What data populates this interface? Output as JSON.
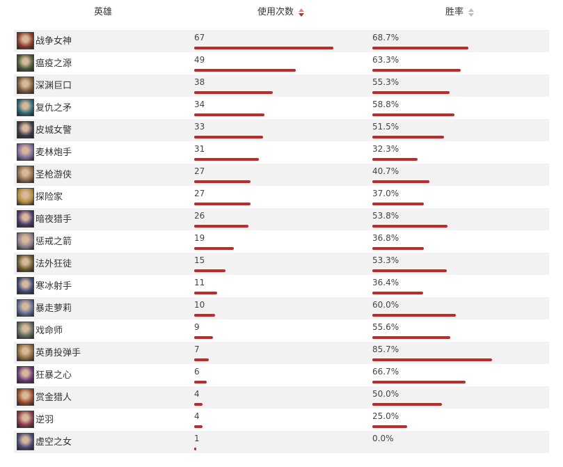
{
  "header": {
    "hero_label": "英雄",
    "uses_label": "使用次数",
    "winrate_label": "胜率"
  },
  "accent_color": "#c62828",
  "heroes": [
    {
      "name": "战争女神",
      "uses": "67",
      "winrate": "68.7%",
      "uses_num": 67,
      "win_num": 68.7,
      "avatar_color": "#8a3a2a"
    },
    {
      "name": "瘟疫之源",
      "uses": "49",
      "winrate": "63.3%",
      "uses_num": 49,
      "win_num": 63.3,
      "avatar_color": "#4a5a3a"
    },
    {
      "name": "深渊巨口",
      "uses": "38",
      "winrate": "55.3%",
      "uses_num": 38,
      "win_num": 55.3,
      "avatar_color": "#7a5a3a"
    },
    {
      "name": "复仇之矛",
      "uses": "34",
      "winrate": "58.8%",
      "uses_num": 34,
      "win_num": 58.8,
      "avatar_color": "#2a6a7a"
    },
    {
      "name": "皮城女警",
      "uses": "33",
      "winrate": "51.5%",
      "uses_num": 33,
      "win_num": 51.5,
      "avatar_color": "#3a3a4a"
    },
    {
      "name": "麦林炮手",
      "uses": "31",
      "winrate": "32.3%",
      "uses_num": 31,
      "win_num": 32.3,
      "avatar_color": "#7a6a9a"
    },
    {
      "name": "圣枪游侠",
      "uses": "27",
      "winrate": "40.7%",
      "uses_num": 27,
      "win_num": 40.7,
      "avatar_color": "#8a6a4a"
    },
    {
      "name": "探险家",
      "uses": "27",
      "winrate": "37.0%",
      "uses_num": 27,
      "win_num": 37.0,
      "avatar_color": "#b08a3a"
    },
    {
      "name": "暗夜猎手",
      "uses": "26",
      "winrate": "53.8%",
      "uses_num": 26,
      "win_num": 53.8,
      "avatar_color": "#4a3a6a"
    },
    {
      "name": "惩戒之箭",
      "uses": "19",
      "winrate": "36.8%",
      "uses_num": 19,
      "win_num": 36.8,
      "avatar_color": "#8a7a8a"
    },
    {
      "name": "法外狂徒",
      "uses": "15",
      "winrate": "53.3%",
      "uses_num": 15,
      "win_num": 53.3,
      "avatar_color": "#6a5a2a"
    },
    {
      "name": "寒冰射手",
      "uses": "11",
      "winrate": "36.4%",
      "uses_num": 11,
      "win_num": 36.4,
      "avatar_color": "#3a4a7a"
    },
    {
      "name": "暴走萝莉",
      "uses": "10",
      "winrate": "60.0%",
      "uses_num": 10,
      "win_num": 60.0,
      "avatar_color": "#5a6a9a"
    },
    {
      "name": "戏命师",
      "uses": "9",
      "winrate": "55.6%",
      "uses_num": 9,
      "win_num": 55.6,
      "avatar_color": "#5a6a5a"
    },
    {
      "name": "英勇投弹手",
      "uses": "7",
      "winrate": "85.7%",
      "uses_num": 7,
      "win_num": 85.7,
      "avatar_color": "#8a6a3a"
    },
    {
      "name": "狂暴之心",
      "uses": "6",
      "winrate": "66.7%",
      "uses_num": 6,
      "win_num": 66.7,
      "avatar_color": "#6a3a7a"
    },
    {
      "name": "赏金猎人",
      "uses": "4",
      "winrate": "50.0%",
      "uses_num": 4,
      "win_num": 50.0,
      "avatar_color": "#9a4a2a"
    },
    {
      "name": "逆羽",
      "uses": "4",
      "winrate": "25.0%",
      "uses_num": 4,
      "win_num": 25.0,
      "avatar_color": "#8a3a4a"
    },
    {
      "name": "虚空之女",
      "uses": "1",
      "winrate": "0.0%",
      "uses_num": 1,
      "win_num": 0.0,
      "avatar_color": "#4a4a7a"
    }
  ]
}
